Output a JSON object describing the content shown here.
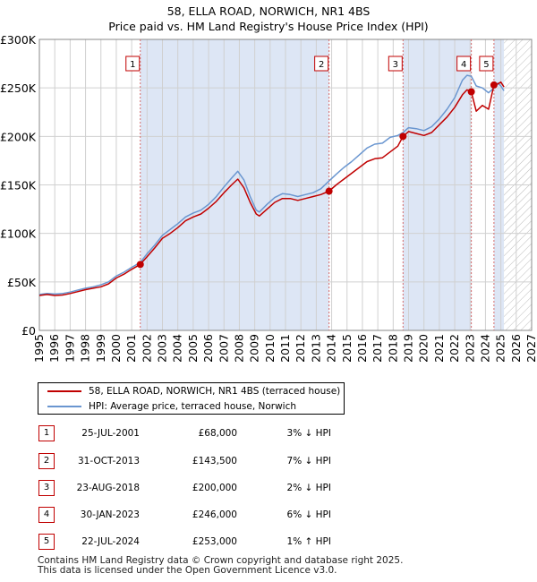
{
  "title_line1": "58, ELLA ROAD, NORWICH, NR1 4BS",
  "title_line2": "Price paid vs. HM Land Registry's House Price Index (HPI)",
  "colors": {
    "price_line": "#c00000",
    "hpi_line": "#6a96d0",
    "shade": "#dde6f5",
    "marker_line": "#d46a6a",
    "grid": "#d0d0d0"
  },
  "legend": {
    "price_label": "58, ELLA ROAD, NORWICH, NR1 4BS (terraced house)",
    "hpi_label": "HPI: Average price, terraced house, Norwich"
  },
  "transactions": [
    {
      "num": "1",
      "date": "25-JUL-2001",
      "price": "£68,000",
      "hpi": "3% ↓ HPI"
    },
    {
      "num": "2",
      "date": "31-OCT-2013",
      "price": "£143,500",
      "hpi": "7% ↓ HPI"
    },
    {
      "num": "3",
      "date": "23-AUG-2018",
      "price": "£200,000",
      "hpi": "2% ↓ HPI"
    },
    {
      "num": "4",
      "date": "30-JAN-2023",
      "price": "£246,000",
      "hpi": "6% ↓ HPI"
    },
    {
      "num": "5",
      "date": "22-JUL-2024",
      "price": "£253,000",
      "hpi": "1% ↑ HPI"
    }
  ],
  "footer": {
    "line1": "Contains HM Land Registry data © Crown copyright and database right 2025.",
    "line2": "This data is licensed under the Open Government Licence v3.0."
  },
  "chart_data": {
    "type": "line",
    "title": "58, ELLA ROAD, NORWICH, NR1 4BS — Price paid vs. HM Land Registry's House Price Index (HPI)",
    "xlabel": "",
    "ylabel": "",
    "xlim": [
      1995,
      2027
    ],
    "ylim": [
      0,
      300000
    ],
    "x_ticks": [
      1995,
      1996,
      1997,
      1998,
      1999,
      2000,
      2001,
      2002,
      2003,
      2004,
      2005,
      2006,
      2007,
      2008,
      2009,
      2010,
      2011,
      2012,
      2013,
      2014,
      2015,
      2016,
      2017,
      2018,
      2019,
      2020,
      2021,
      2022,
      2023,
      2024,
      2025,
      2026,
      2027
    ],
    "y_ticks": [
      0,
      50000,
      100000,
      150000,
      200000,
      250000,
      300000
    ],
    "y_tick_labels": [
      "£0",
      "£50K",
      "£100K",
      "£150K",
      "£200K",
      "£250K",
      "£300K"
    ],
    "grid": true,
    "shaded_periods": [
      [
        2001.56,
        2013.83
      ],
      [
        2018.64,
        2023.08
      ],
      [
        2024.55,
        2025.2
      ]
    ],
    "forecast_hatch_from": 2025.2,
    "series": [
      {
        "name": "58, ELLA ROAD, NORWICH, NR1 4BS (terraced house)",
        "x": [
          1995.0,
          1995.5,
          1996.0,
          1996.5,
          1997.0,
          1997.5,
          1998.0,
          1998.5,
          1999.0,
          1999.5,
          2000.0,
          2000.5,
          2001.0,
          2001.56,
          2002.0,
          2002.5,
          2003.0,
          2003.5,
          2004.0,
          2004.5,
          2005.0,
          2005.5,
          2006.0,
          2006.5,
          2007.0,
          2007.5,
          2007.9,
          2008.3,
          2008.7,
          2009.1,
          2009.3,
          2009.8,
          2010.3,
          2010.8,
          2011.3,
          2011.8,
          2012.3,
          2012.8,
          2013.3,
          2013.83,
          2014.3,
          2014.8,
          2015.3,
          2015.8,
          2016.3,
          2016.8,
          2017.3,
          2017.8,
          2018.3,
          2018.64,
          2019.0,
          2019.5,
          2020.0,
          2020.5,
          2021.0,
          2021.5,
          2022.0,
          2022.5,
          2022.8,
          2023.08,
          2023.4,
          2023.8,
          2024.2,
          2024.55,
          2024.8,
          2025.0,
          2025.2
        ],
        "values": [
          36000,
          37000,
          36000,
          36500,
          38000,
          40000,
          42000,
          43500,
          45000,
          48000,
          54000,
          58000,
          63000,
          68000,
          76000,
          85000,
          95000,
          100000,
          106000,
          113000,
          117000,
          120000,
          126000,
          133000,
          142000,
          150000,
          156000,
          147000,
          132000,
          120000,
          118000,
          125000,
          132000,
          136000,
          136000,
          134000,
          136000,
          138000,
          140000,
          143500,
          150000,
          156000,
          162000,
          168000,
          174000,
          177000,
          178000,
          184000,
          190000,
          200000,
          205000,
          203000,
          201000,
          204000,
          212000,
          220000,
          230000,
          243000,
          248000,
          246000,
          226000,
          232000,
          228000,
          253000,
          254000,
          256000,
          251000
        ]
      },
      {
        "name": "HPI: Average price, terraced house, Norwich",
        "x": [
          1995.0,
          1995.5,
          1996.0,
          1996.5,
          1997.0,
          1997.5,
          1998.0,
          1998.5,
          1999.0,
          1999.5,
          2000.0,
          2000.5,
          2001.0,
          2001.56,
          2002.0,
          2002.5,
          2003.0,
          2003.5,
          2004.0,
          2004.5,
          2005.0,
          2005.5,
          2006.0,
          2006.5,
          2007.0,
          2007.5,
          2007.9,
          2008.3,
          2008.7,
          2009.1,
          2009.3,
          2009.8,
          2010.3,
          2010.8,
          2011.3,
          2011.8,
          2012.3,
          2012.8,
          2013.3,
          2013.83,
          2014.3,
          2014.8,
          2015.3,
          2015.8,
          2016.3,
          2016.8,
          2017.3,
          2017.8,
          2018.3,
          2018.64,
          2019.0,
          2019.5,
          2020.0,
          2020.5,
          2021.0,
          2021.5,
          2022.0,
          2022.5,
          2022.8,
          2023.08,
          2023.4,
          2023.8,
          2024.2,
          2024.55,
          2024.8,
          2025.0,
          2025.2
        ],
        "values": [
          37000,
          38000,
          37500,
          38000,
          39500,
          41500,
          43500,
          45000,
          47000,
          50000,
          56000,
          60000,
          65000,
          70000,
          79000,
          88000,
          98000,
          104000,
          110000,
          117000,
          121000,
          124000,
          130000,
          138000,
          148000,
          157000,
          164000,
          155000,
          138000,
          124000,
          122000,
          130000,
          137000,
          141000,
          140000,
          138000,
          140000,
          142000,
          146000,
          154000,
          161000,
          168000,
          174000,
          181000,
          188000,
          192000,
          193000,
          199000,
          201000,
          204000,
          209000,
          208000,
          206000,
          210000,
          218000,
          228000,
          240000,
          258000,
          263000,
          262000,
          252000,
          250000,
          245000,
          250000,
          255000,
          252000,
          247000
        ]
      }
    ],
    "annotations": [
      {
        "label": "1",
        "x": 2001.56,
        "y": 68000
      },
      {
        "label": "2",
        "x": 2013.83,
        "y": 143500
      },
      {
        "label": "3",
        "x": 2018.64,
        "y": 200000
      },
      {
        "label": "4",
        "x": 2023.08,
        "y": 246000
      },
      {
        "label": "5",
        "x": 2024.55,
        "y": 253000
      }
    ]
  }
}
